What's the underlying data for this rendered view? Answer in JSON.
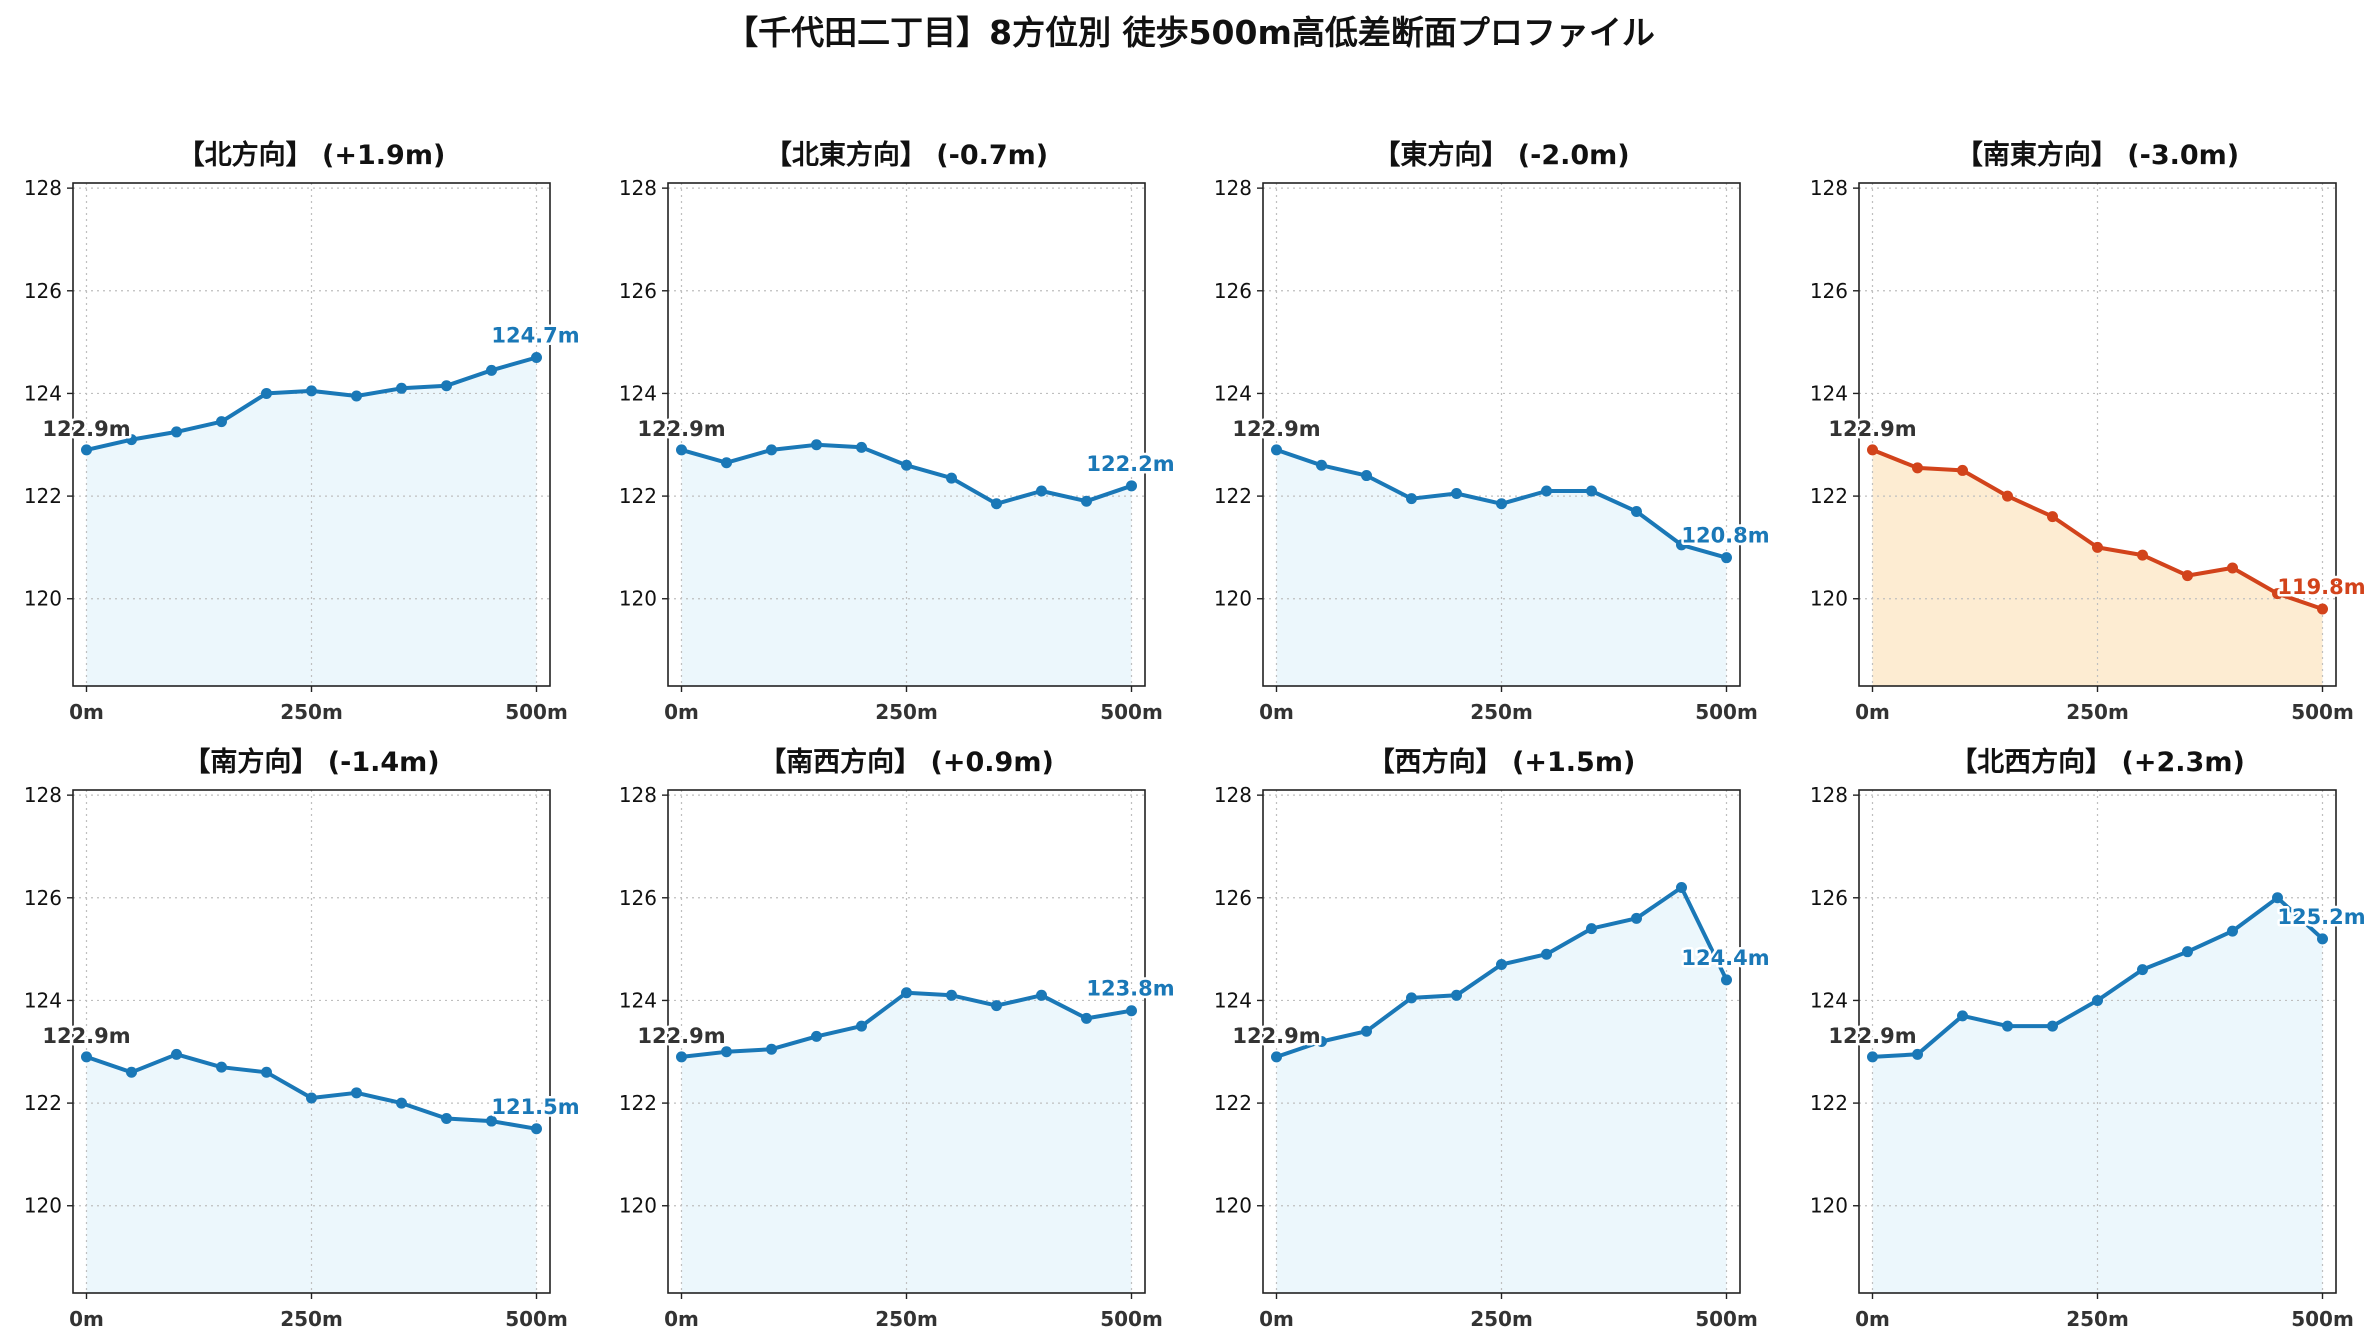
{
  "title": "【千代田二丁目】8方位別 徒歩500m高低差断面プロファイル",
  "colors": {
    "normal_line": "#1a78b7",
    "normal_fill": "#ecf7fc",
    "highlight_line": "#d2431b",
    "highlight_fill": "#fdecd2",
    "start_label": "#333333"
  },
  "chart_data": [
    {
      "type": "area",
      "title": "【北方向】 (+1.9m)",
      "x": [
        0,
        50,
        100,
        150,
        200,
        250,
        300,
        350,
        400,
        450,
        500
      ],
      "values": [
        122.9,
        123.1,
        123.25,
        123.45,
        124.0,
        124.05,
        123.95,
        124.1,
        124.15,
        124.45,
        124.7
      ],
      "xticks": [
        "0m",
        "250m",
        "500m"
      ],
      "yticks": [
        "120",
        "122",
        "124",
        "126",
        "128"
      ],
      "ylim": [
        118.3,
        128.1
      ],
      "xlim": [
        -15,
        515
      ],
      "grid": true,
      "start_label": "122.9m",
      "end_label": "124.7m",
      "highlight": false
    },
    {
      "type": "area",
      "title": "【北東方向】 (-0.7m)",
      "x": [
        0,
        50,
        100,
        150,
        200,
        250,
        300,
        350,
        400,
        450,
        500
      ],
      "values": [
        122.9,
        122.65,
        122.9,
        123.0,
        122.95,
        122.6,
        122.35,
        121.85,
        122.1,
        121.9,
        122.2
      ],
      "xticks": [
        "0m",
        "250m",
        "500m"
      ],
      "yticks": [
        "120",
        "122",
        "124",
        "126",
        "128"
      ],
      "ylim": [
        118.3,
        128.1
      ],
      "xlim": [
        -15,
        515
      ],
      "grid": true,
      "start_label": "122.9m",
      "end_label": "122.2m",
      "highlight": false
    },
    {
      "type": "area",
      "title": "【東方向】 (-2.0m)",
      "x": [
        0,
        50,
        100,
        150,
        200,
        250,
        300,
        350,
        400,
        450,
        500
      ],
      "values": [
        122.9,
        122.6,
        122.4,
        121.95,
        122.05,
        121.85,
        122.1,
        122.1,
        121.7,
        121.05,
        120.8
      ],
      "xticks": [
        "0m",
        "250m",
        "500m"
      ],
      "yticks": [
        "120",
        "122",
        "124",
        "126",
        "128"
      ],
      "ylim": [
        118.3,
        128.1
      ],
      "xlim": [
        -15,
        515
      ],
      "grid": true,
      "start_label": "122.9m",
      "end_label": "120.8m",
      "highlight": false
    },
    {
      "type": "area",
      "title": "【南東方向】 (-3.0m)",
      "x": [
        0,
        50,
        100,
        150,
        200,
        250,
        300,
        350,
        400,
        450,
        500
      ],
      "values": [
        122.9,
        122.55,
        122.5,
        122.0,
        121.6,
        121.0,
        120.85,
        120.45,
        120.6,
        120.1,
        119.8
      ],
      "xticks": [
        "0m",
        "250m",
        "500m"
      ],
      "yticks": [
        "120",
        "122",
        "124",
        "126",
        "128"
      ],
      "ylim": [
        118.3,
        128.1
      ],
      "xlim": [
        -15,
        515
      ],
      "grid": true,
      "start_label": "122.9m",
      "end_label": "119.8m",
      "highlight": true
    },
    {
      "type": "area",
      "title": "【南方向】 (-1.4m)",
      "x": [
        0,
        50,
        100,
        150,
        200,
        250,
        300,
        350,
        400,
        450,
        500
      ],
      "values": [
        122.9,
        122.6,
        122.95,
        122.7,
        122.6,
        122.1,
        122.2,
        122.0,
        121.7,
        121.65,
        121.5
      ],
      "xticks": [
        "0m",
        "250m",
        "500m"
      ],
      "yticks": [
        "120",
        "122",
        "124",
        "126",
        "128"
      ],
      "ylim": [
        118.3,
        128.1
      ],
      "xlim": [
        -15,
        515
      ],
      "grid": true,
      "start_label": "122.9m",
      "end_label": "121.5m",
      "highlight": false
    },
    {
      "type": "area",
      "title": "【南西方向】 (+0.9m)",
      "x": [
        0,
        50,
        100,
        150,
        200,
        250,
        300,
        350,
        400,
        450,
        500
      ],
      "values": [
        122.9,
        123.0,
        123.05,
        123.3,
        123.5,
        124.15,
        124.1,
        123.9,
        124.1,
        123.65,
        123.8
      ],
      "xticks": [
        "0m",
        "250m",
        "500m"
      ],
      "yticks": [
        "120",
        "122",
        "124",
        "126",
        "128"
      ],
      "ylim": [
        118.3,
        128.1
      ],
      "xlim": [
        -15,
        515
      ],
      "grid": true,
      "start_label": "122.9m",
      "end_label": "123.8m",
      "highlight": false
    },
    {
      "type": "area",
      "title": "【西方向】 (+1.5m)",
      "x": [
        0,
        50,
        100,
        150,
        200,
        250,
        300,
        350,
        400,
        450,
        500
      ],
      "values": [
        122.9,
        123.2,
        123.4,
        124.05,
        124.1,
        124.7,
        124.9,
        125.4,
        125.6,
        126.2,
        124.4
      ],
      "xticks": [
        "0m",
        "250m",
        "500m"
      ],
      "yticks": [
        "120",
        "122",
        "124",
        "126",
        "128"
      ],
      "ylim": [
        118.3,
        128.1
      ],
      "xlim": [
        -15,
        515
      ],
      "grid": true,
      "start_label": "122.9m",
      "end_label": "124.4m",
      "highlight": false
    },
    {
      "type": "area",
      "title": "【北西方向】 (+2.3m)",
      "x": [
        0,
        50,
        100,
        150,
        200,
        250,
        300,
        350,
        400,
        450,
        500
      ],
      "values": [
        122.9,
        122.95,
        123.7,
        123.5,
        123.5,
        124.0,
        124.6,
        124.95,
        125.35,
        126.0,
        125.2
      ],
      "xticks": [
        "0m",
        "250m",
        "500m"
      ],
      "yticks": [
        "120",
        "122",
        "124",
        "126",
        "128"
      ],
      "ylim": [
        118.3,
        128.1
      ],
      "xlim": [
        -15,
        515
      ],
      "grid": true,
      "start_label": "122.9m",
      "end_label": "125.2m",
      "highlight": false
    }
  ]
}
